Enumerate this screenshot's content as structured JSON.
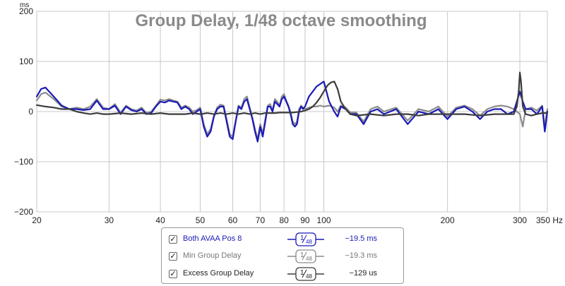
{
  "chart_data": {
    "type": "line",
    "title": "Group Delay, 1/48 octave smoothing",
    "ylabel": "ms",
    "xlabel": "Hz",
    "xscale": "log",
    "xlim": [
      20,
      350
    ],
    "ylim": [
      -200,
      200
    ],
    "y_ticks": [
      -200,
      -100,
      0,
      100,
      200
    ],
    "x_ticks": [
      20,
      30,
      40,
      50,
      60,
      70,
      80,
      90,
      100,
      200,
      300,
      350
    ],
    "x_tick_labels": [
      "20",
      "30",
      "40",
      "50",
      "60",
      "70",
      "80",
      "90",
      "100",
      "200",
      "300",
      "350 Hz"
    ],
    "grid": true,
    "series": [
      {
        "name": "Both AVAA Pos 8",
        "color": "#1a1ab8",
        "x": [
          20,
          20.5,
          21,
          22,
          23,
          24,
          25,
          26,
          27,
          28,
          29,
          30,
          31,
          32,
          33,
          34,
          35,
          36,
          37,
          38,
          39,
          40,
          41,
          42,
          43,
          44,
          45,
          46,
          47,
          48,
          49,
          50,
          51,
          52,
          53,
          54,
          55,
          56,
          57,
          58,
          59,
          60,
          61,
          62,
          63,
          64,
          65,
          66,
          67,
          68,
          69,
          70,
          71,
          72,
          73,
          74,
          75,
          76,
          77,
          78,
          79,
          80,
          81,
          82,
          83,
          84,
          85,
          86,
          87,
          88,
          89,
          90,
          92,
          94,
          96,
          98,
          100,
          103,
          106,
          108,
          110,
          113,
          116,
          120,
          125,
          130,
          135,
          140,
          150,
          160,
          170,
          180,
          190,
          200,
          210,
          220,
          230,
          240,
          250,
          260,
          270,
          280,
          290,
          300,
          305,
          310,
          320,
          330,
          340,
          345,
          350
        ],
        "y": [
          30,
          45,
          48,
          30,
          12,
          5,
          5,
          3,
          5,
          22,
          5,
          5,
          12,
          -5,
          10,
          3,
          0,
          5,
          -5,
          -3,
          10,
          20,
          18,
          22,
          20,
          18,
          5,
          10,
          5,
          -5,
          0,
          5,
          -30,
          -50,
          -40,
          -10,
          5,
          10,
          10,
          -20,
          -50,
          -55,
          -20,
          10,
          5,
          20,
          25,
          5,
          -15,
          -40,
          -60,
          -30,
          -50,
          -20,
          10,
          10,
          0,
          20,
          15,
          10,
          25,
          30,
          20,
          10,
          -5,
          -25,
          -30,
          -25,
          0,
          10,
          5,
          10,
          30,
          40,
          50,
          55,
          60,
          20,
          0,
          -10,
          10,
          5,
          -5,
          -5,
          -25,
          0,
          5,
          -5,
          5,
          -25,
          0,
          -5,
          5,
          -15,
          5,
          10,
          0,
          -15,
          0,
          5,
          5,
          -5,
          0,
          40,
          20,
          5,
          5,
          -5,
          10,
          -40,
          0
        ]
      },
      {
        "name": "Min Group Delay",
        "color": "#8c8c8c",
        "x": [
          20,
          20.5,
          21,
          22,
          23,
          24,
          25,
          26,
          27,
          28,
          29,
          30,
          31,
          32,
          33,
          34,
          35,
          36,
          37,
          38,
          39,
          40,
          41,
          42,
          43,
          44,
          45,
          46,
          47,
          48,
          49,
          50,
          51,
          52,
          53,
          54,
          55,
          56,
          57,
          58,
          59,
          60,
          61,
          62,
          63,
          64,
          65,
          66,
          67,
          68,
          69,
          70,
          71,
          72,
          73,
          74,
          75,
          76,
          77,
          78,
          79,
          80,
          81,
          82,
          83,
          84,
          85,
          86,
          87,
          88,
          89,
          90,
          92,
          94,
          96,
          98,
          100,
          103,
          106,
          108,
          110,
          113,
          116,
          120,
          125,
          130,
          135,
          140,
          150,
          160,
          170,
          180,
          190,
          200,
          210,
          220,
          230,
          240,
          250,
          260,
          270,
          280,
          290,
          300,
          305,
          310,
          320,
          330,
          340,
          345,
          350
        ],
        "y": [
          22,
          35,
          38,
          25,
          10,
          5,
          8,
          5,
          10,
          25,
          8,
          5,
          15,
          -2,
          12,
          5,
          2,
          8,
          -3,
          0,
          12,
          24,
          22,
          25,
          22,
          20,
          8,
          12,
          8,
          0,
          3,
          8,
          -25,
          -45,
          -35,
          -8,
          8,
          14,
          12,
          -15,
          -45,
          -50,
          -18,
          12,
          8,
          25,
          30,
          8,
          -12,
          -35,
          -55,
          -25,
          -45,
          -15,
          12,
          15,
          2,
          25,
          20,
          12,
          30,
          35,
          22,
          12,
          -2,
          -20,
          -25,
          -20,
          5,
          12,
          8,
          5,
          8,
          10,
          10,
          12,
          10,
          12,
          8,
          0,
          12,
          8,
          -2,
          -2,
          -20,
          5,
          10,
          0,
          8,
          -18,
          5,
          0,
          10,
          -10,
          8,
          12,
          5,
          -8,
          5,
          10,
          12,
          10,
          5,
          -5,
          -30,
          5,
          8,
          2,
          12,
          -30,
          5
        ]
      },
      {
        "name": "Excess Group Delay",
        "color": "#3c3c3c",
        "x": [
          20,
          21,
          22,
          23,
          24,
          25,
          26,
          27,
          28,
          29,
          30,
          32,
          34,
          36,
          38,
          40,
          42,
          44,
          46,
          48,
          50,
          52,
          54,
          56,
          58,
          60,
          62,
          64,
          66,
          68,
          70,
          72,
          74,
          76,
          78,
          80,
          82,
          84,
          86,
          88,
          90,
          92,
          94,
          96,
          98,
          100,
          102,
          104,
          106,
          108,
          110,
          113,
          116,
          120,
          130,
          140,
          150,
          160,
          170,
          180,
          190,
          200,
          220,
          240,
          260,
          280,
          290,
          295,
          298,
          300,
          302,
          305,
          310,
          320,
          330,
          340,
          350
        ],
        "y": [
          13,
          10,
          8,
          5,
          5,
          0,
          -3,
          -5,
          -3,
          -5,
          -5,
          -3,
          -5,
          -3,
          -5,
          -3,
          -5,
          -5,
          -5,
          -3,
          -5,
          -3,
          -5,
          -3,
          -5,
          -3,
          -5,
          -3,
          -5,
          -3,
          -5,
          -3,
          -3,
          -3,
          -2,
          -2,
          -2,
          -2,
          -1,
          0,
          2,
          5,
          10,
          18,
          28,
          40,
          52,
          58,
          60,
          45,
          20,
          5,
          -5,
          -8,
          -5,
          -8,
          -5,
          -5,
          -8,
          -5,
          -5,
          -5,
          -5,
          -8,
          -5,
          -5,
          -5,
          10,
          40,
          78,
          60,
          10,
          -5,
          -8,
          -5,
          -3,
          -3
        ]
      }
    ]
  },
  "legend": {
    "items": [
      {
        "name": "Both AVAA Pos 8",
        "check": "✓",
        "smoothing_num": "1",
        "smoothing_den": "48",
        "value": "−19.5 ms",
        "color": "#1a1ab8"
      },
      {
        "name": "Min Group Delay",
        "check": "✓",
        "smoothing_num": "1",
        "smoothing_den": "48",
        "value": "−19.3 ms",
        "color": "#8c8c8c"
      },
      {
        "name": "Excess Group Delay",
        "check": "✓",
        "smoothing_num": "1",
        "smoothing_den": "48",
        "value": "−129 us",
        "color": "#3c3c3c"
      }
    ]
  }
}
